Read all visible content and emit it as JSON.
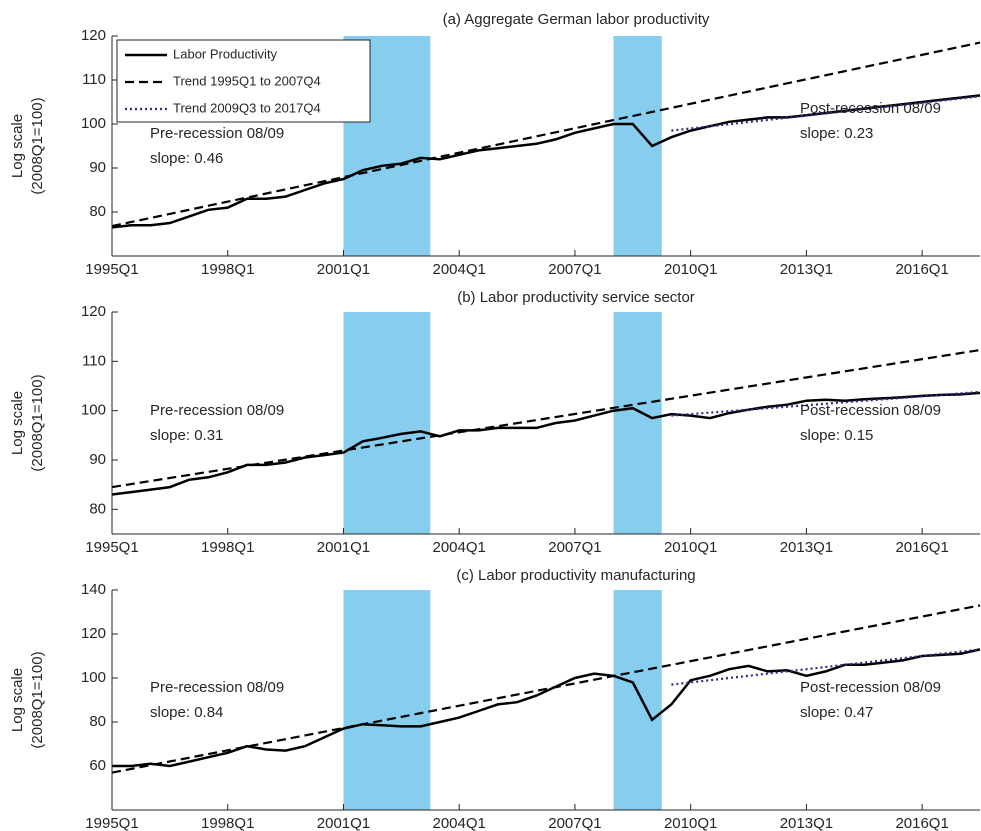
{
  "chart_data": [
    {
      "type": "line",
      "title": "(a) Aggregate German labor productivity",
      "ylabel": [
        "Log scale",
        "(2008Q1=100)"
      ],
      "x": [
        "1995Q1",
        "1995Q3",
        "1996Q1",
        "1996Q3",
        "1997Q1",
        "1997Q3",
        "1998Q1",
        "1998Q3",
        "1999Q1",
        "1999Q3",
        "2000Q1",
        "2000Q3",
        "2001Q1",
        "2001Q3",
        "2002Q1",
        "2002Q3",
        "2003Q1",
        "2003Q3",
        "2004Q1",
        "2004Q3",
        "2005Q1",
        "2005Q3",
        "2006Q1",
        "2006Q3",
        "2007Q1",
        "2007Q3",
        "2008Q1",
        "2008Q3",
        "2009Q1",
        "2009Q3",
        "2010Q1",
        "2010Q3",
        "2011Q1",
        "2011Q3",
        "2012Q1",
        "2012Q3",
        "2013Q1",
        "2013Q3",
        "2014Q1",
        "2014Q3",
        "2015Q1",
        "2015Q3",
        "2016Q1",
        "2016Q3",
        "2017Q1",
        "2017Q3"
      ],
      "xlim": [
        "1995Q1",
        "2017Q3"
      ],
      "xticks": [
        "1995Q1",
        "1998Q1",
        "2001Q1",
        "2004Q1",
        "2007Q1",
        "2010Q1",
        "2013Q1",
        "2016Q1"
      ],
      "ylim": [
        70,
        120
      ],
      "yticks": [
        80,
        90,
        100,
        110,
        120
      ],
      "shaded": [
        [
          "2001Q1",
          "2003Q2"
        ],
        [
          "2008Q1",
          "2009Q2"
        ]
      ],
      "shade_color": "#87cdee",
      "legend": "upper left",
      "series": [
        {
          "name": "Labor Productivity",
          "color": "#000000",
          "style": "solid",
          "values": [
            76.5,
            77,
            77,
            77.5,
            79,
            80.5,
            81,
            83,
            83,
            83.5,
            85,
            86.5,
            87.5,
            89.5,
            90.5,
            91,
            92.3,
            92,
            93,
            94,
            94.5,
            95,
            95.5,
            96.5,
            98,
            99,
            100,
            100,
            95,
            97,
            98.5,
            99.5,
            100.5,
            101,
            101.5,
            101.5,
            102,
            102.5,
            103,
            103.5,
            104,
            104.5,
            105,
            105.5,
            106,
            106.5
          ]
        },
        {
          "name": "Trend 1995Q1 to 2007Q4",
          "color": "#000000",
          "style": "dashed",
          "x": [
            "1995Q1",
            "2017Q3"
          ],
          "values": [
            76.8,
            118.5
          ]
        },
        {
          "name": "Trend 2009Q3 to 2017Q4",
          "color": "#2b2b8c",
          "style": "dotted",
          "x": [
            "2009Q3",
            "2017Q3"
          ],
          "values": [
            98.5,
            106.3
          ]
        }
      ],
      "annotations": [
        [
          "Pre-recession 08/09",
          "slope: 0.46"
        ],
        [
          "Post-recession 08/09",
          "slope: 0.23"
        ]
      ]
    },
    {
      "type": "line",
      "title": "(b) Labor productivity service sector",
      "ylabel": [
        "Log scale",
        "(2008Q1=100)"
      ],
      "x": [
        "1995Q1",
        "1995Q3",
        "1996Q1",
        "1996Q3",
        "1997Q1",
        "1997Q3",
        "1998Q1",
        "1998Q3",
        "1999Q1",
        "1999Q3",
        "2000Q1",
        "2000Q3",
        "2001Q1",
        "2001Q3",
        "2002Q1",
        "2002Q3",
        "2003Q1",
        "2003Q3",
        "2004Q1",
        "2004Q3",
        "2005Q1",
        "2005Q3",
        "2006Q1",
        "2006Q3",
        "2007Q1",
        "2007Q3",
        "2008Q1",
        "2008Q3",
        "2009Q1",
        "2009Q3",
        "2010Q1",
        "2010Q3",
        "2011Q1",
        "2011Q3",
        "2012Q1",
        "2012Q3",
        "2013Q1",
        "2013Q3",
        "2014Q1",
        "2014Q3",
        "2015Q1",
        "2015Q3",
        "2016Q1",
        "2016Q3",
        "2017Q1",
        "2017Q3"
      ],
      "xlim": [
        "1995Q1",
        "2017Q3"
      ],
      "xticks": [
        "1995Q1",
        "1998Q1",
        "2001Q1",
        "2004Q1",
        "2007Q1",
        "2010Q1",
        "2013Q1",
        "2016Q1"
      ],
      "ylim": [
        75,
        120
      ],
      "yticks": [
        80,
        90,
        100,
        110,
        120
      ],
      "shaded": [
        [
          "2001Q1",
          "2003Q2"
        ],
        [
          "2008Q1",
          "2009Q2"
        ]
      ],
      "shade_color": "#87cdee",
      "series": [
        {
          "color": "#000000",
          "style": "solid",
          "values": [
            83,
            83.5,
            84,
            84.5,
            86,
            86.5,
            87.5,
            89,
            89,
            89.5,
            90.5,
            91,
            91.5,
            93.8,
            94.5,
            95.3,
            95.8,
            94.8,
            96,
            96,
            96.5,
            96.5,
            96.5,
            97.5,
            98,
            99,
            100,
            100.5,
            98.5,
            99.3,
            99,
            98.5,
            99.5,
            100.2,
            100.8,
            101.2,
            102,
            102.2,
            102,
            102.3,
            102.5,
            102.7,
            103,
            103.2,
            103.3,
            103.6
          ]
        },
        {
          "color": "#000000",
          "style": "dashed",
          "x": [
            "1995Q1",
            "2017Q3"
          ],
          "values": [
            84.5,
            112.3
          ]
        },
        {
          "color": "#2b2b8c",
          "style": "dotted",
          "x": [
            "2009Q3",
            "2017Q3"
          ],
          "values": [
            99,
            103.8
          ]
        }
      ],
      "annotations": [
        [
          "Pre-recession 08/09",
          "slope: 0.31"
        ],
        [
          "Post-recession 08/09",
          "slope: 0.15"
        ]
      ]
    },
    {
      "type": "line",
      "title": "(c) Labor productivity manufacturing",
      "ylabel": [
        "Log scale",
        "(2008Q1=100)"
      ],
      "x": [
        "1995Q1",
        "1995Q3",
        "1996Q1",
        "1996Q3",
        "1997Q1",
        "1997Q3",
        "1998Q1",
        "1998Q3",
        "1999Q1",
        "1999Q3",
        "2000Q1",
        "2000Q3",
        "2001Q1",
        "2001Q3",
        "2002Q1",
        "2002Q3",
        "2003Q1",
        "2003Q3",
        "2004Q1",
        "2004Q3",
        "2005Q1",
        "2005Q3",
        "2006Q1",
        "2006Q3",
        "2007Q1",
        "2007Q3",
        "2008Q1",
        "2008Q3",
        "2009Q1",
        "2009Q3",
        "2010Q1",
        "2010Q3",
        "2011Q1",
        "2011Q3",
        "2012Q1",
        "2012Q3",
        "2013Q1",
        "2013Q3",
        "2014Q1",
        "2014Q3",
        "2015Q1",
        "2015Q3",
        "2016Q1",
        "2016Q3",
        "2017Q1",
        "2017Q3"
      ],
      "xlim": [
        "1995Q1",
        "2017Q3"
      ],
      "xticks": [
        "1995Q1",
        "1998Q1",
        "2001Q1",
        "2004Q1",
        "2007Q1",
        "2010Q1",
        "2013Q1",
        "2016Q1"
      ],
      "ylim": [
        40,
        140
      ],
      "yticks": [
        60,
        80,
        100,
        120,
        140
      ],
      "shaded": [
        [
          "2001Q1",
          "2003Q2"
        ],
        [
          "2008Q1",
          "2009Q2"
        ]
      ],
      "shade_color": "#87cdee",
      "series": [
        {
          "color": "#000000",
          "style": "solid",
          "values": [
            60,
            60,
            61,
            60,
            62,
            64,
            66,
            69,
            67.5,
            67,
            69,
            73,
            77,
            79,
            78.5,
            78,
            78,
            80,
            82,
            85,
            88,
            89,
            92,
            96,
            100,
            102,
            101,
            98,
            81,
            88,
            99,
            101,
            104,
            105.5,
            103,
            103.5,
            101,
            103,
            106,
            106,
            107,
            108,
            110,
            110.5,
            111,
            113
          ]
        },
        {
          "color": "#000000",
          "style": "dashed",
          "x": [
            "1995Q1",
            "2017Q3"
          ],
          "values": [
            57,
            133
          ]
        },
        {
          "color": "#2b2b8c",
          "style": "dotted",
          "x": [
            "2009Q3",
            "2017Q3"
          ],
          "values": [
            97,
            113
          ]
        }
      ],
      "annotations": [
        [
          "Pre-recession 08/09",
          "slope: 0.84"
        ],
        [
          "Post-recession 08/09",
          "slope: 0.47"
        ]
      ]
    }
  ]
}
